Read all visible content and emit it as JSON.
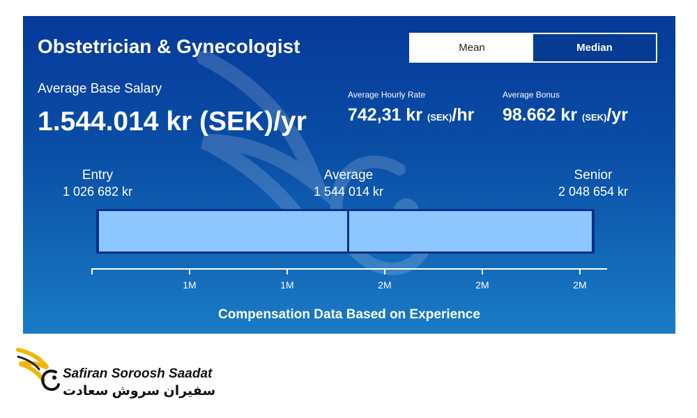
{
  "title": "Obstetrician & Gynecologist",
  "toggle": {
    "mean_label": "Mean",
    "median_label": "Median",
    "selected": "Median"
  },
  "base_salary": {
    "label": "Average Base Salary",
    "value": "1.544.014 kr (SEK)/yr"
  },
  "hourly": {
    "label": "Average Hourly Rate",
    "amount": "742,31 kr",
    "unit": "(SEK)",
    "suffix": "/hr"
  },
  "bonus": {
    "label": "Average Bonus",
    "amount": "98.662 kr",
    "unit": "(SEK)",
    "suffix": "/yr"
  },
  "levels": {
    "entry": {
      "name": "Entry",
      "value": "1 026 682 kr"
    },
    "average": {
      "name": "Average",
      "value": "1 544 014 kr"
    },
    "senior": {
      "name": "Senior",
      "value": "2 048 654 kr"
    }
  },
  "chart_data": {
    "type": "bar",
    "range_min": 1026682,
    "range_max": 2048654,
    "marker": 1544014,
    "x_ticks": [
      "1M",
      "1M",
      "2M",
      "2M",
      "2M"
    ],
    "xlabel": "Compensation Data Based on Experience"
  },
  "colors": {
    "panel": "#0a4fa6",
    "bar_fill": "#8ec7ff",
    "bar_border": "#0b2f86"
  },
  "logo": {
    "text_en": "Safiran Soroosh Saadat",
    "text_fa": "سفیران سروش سعادت",
    "icon": "phoenix-wing-icon"
  }
}
